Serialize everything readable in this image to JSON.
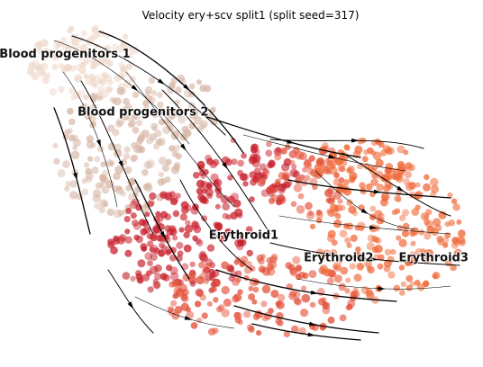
{
  "chart_data": {
    "type": "scatter",
    "title": "Velocity ery+scv split1 (split seed=317)",
    "xlabel": "",
    "ylabel": "",
    "axes_visible": false,
    "grid": false,
    "legend": "on data",
    "cluster_colors": {
      "Blood progenitors 1": "#f0d9cc",
      "Blood progenitors 2": "#d8b8a8",
      "Erythroid1": "#c8202c",
      "Erythroid2": "#e45038",
      "Erythroid3": "#f06a3a"
    },
    "clusters": [
      {
        "name": "Blood progenitors 1",
        "x": 1.0,
        "y": 9.2
      },
      {
        "name": "Blood progenitors 2",
        "x": 2.4,
        "y": 7.4
      },
      {
        "name": "Erythroid1",
        "x": 4.2,
        "y": 3.6
      },
      {
        "name": "Erythroid2",
        "x": 5.9,
        "y": 2.9
      },
      {
        "name": "Erythroid3",
        "x": 7.6,
        "y": 2.9
      }
    ],
    "flow_direction": "from Blood progenitors 1 toward Erythroid3"
  }
}
